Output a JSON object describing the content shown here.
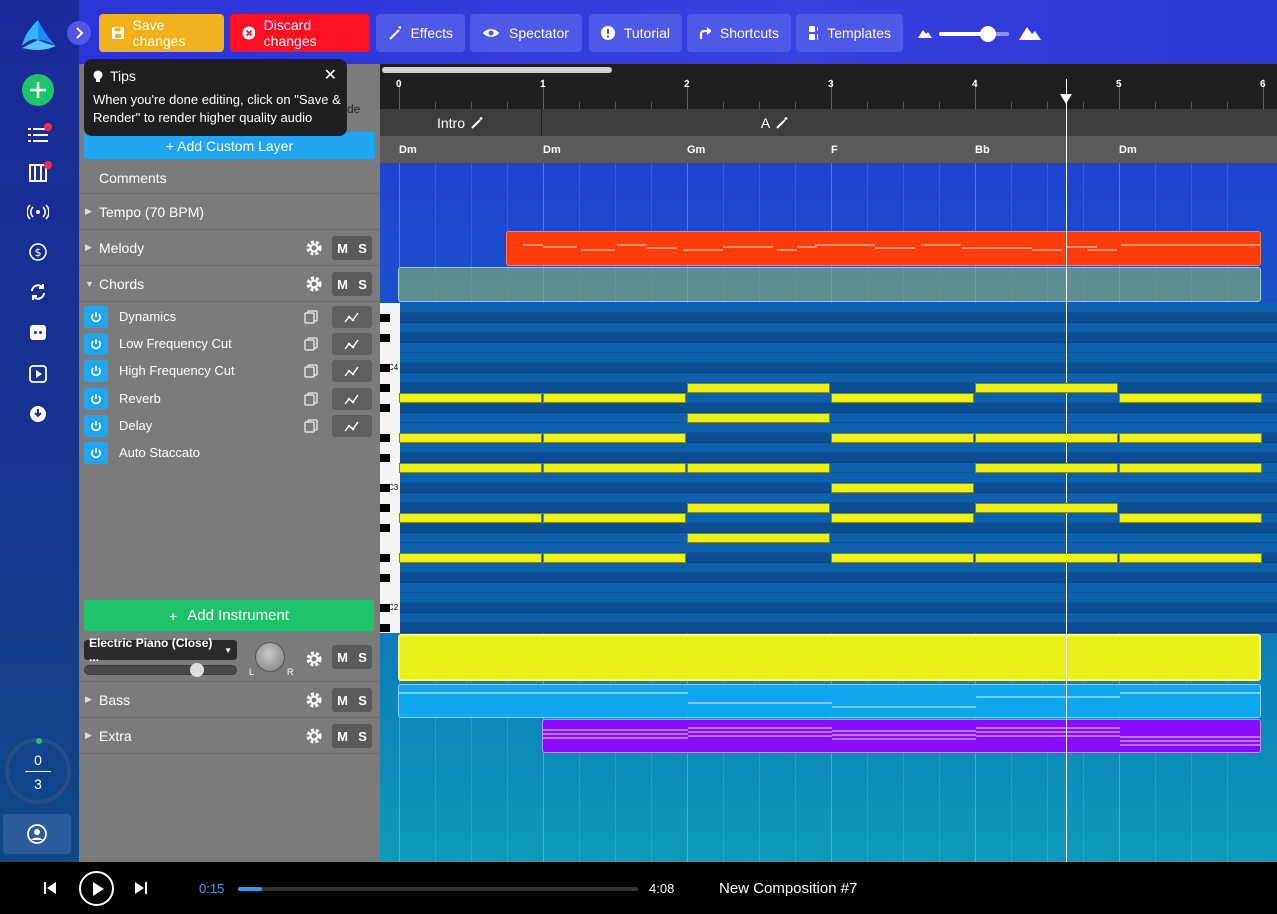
{
  "toolbar": {
    "save_label": "Save changes",
    "discard_label": "Discard changes",
    "effects_label": "Effects",
    "spectator_label": "Spectator",
    "tutorial_label": "Tutorial",
    "shortcuts_label": "Shortcuts",
    "templates_label": "Templates",
    "zoom_level": 0.7
  },
  "tips": {
    "title": "Tips",
    "text": "When you're done editing, click on \"Save & Render\" to render higher quality audio",
    "hidden_suffix": "de"
  },
  "panel": {
    "add_custom_layer": "+ Add Custom Layer",
    "comments": "Comments",
    "tempo": "Tempo (70 BPM)",
    "melody": "Melody",
    "chords": "Chords",
    "effects": [
      "Dynamics",
      "Low Frequency Cut",
      "High Frequency Cut",
      "Reverb",
      "Delay",
      "Auto Staccato"
    ],
    "add_instrument": "Add Instrument",
    "instrument": "Electric Piano (Close) ...",
    "pan_left": "L",
    "pan_right": "R",
    "bass": "Bass",
    "extra": "Extra",
    "m": "M",
    "s": "S"
  },
  "rail": {
    "counter_top": "0",
    "counter_bottom": "3"
  },
  "timeline": {
    "ruler": [
      "0",
      "1",
      "2",
      "3",
      "4",
      "5",
      "6"
    ],
    "sections": [
      "Intro",
      "A"
    ],
    "chords": [
      "Dm",
      "Dm",
      "Gm",
      "F",
      "Bb",
      "Dm"
    ],
    "octaves": [
      "C4",
      "C3",
      "C2"
    ],
    "playhead_measure": 4.63
  },
  "player": {
    "current_time": "0:15",
    "total_time": "4:08",
    "title": "New Composition #7",
    "progress": 0.06
  },
  "colors": {
    "melody": "#ff3d0a",
    "chords": "#e9f01a",
    "bass": "#0fa6ee",
    "extra": "#8a0cff",
    "save": "#f0b21c",
    "discard": "#ff1023",
    "green": "#1fc46a"
  }
}
